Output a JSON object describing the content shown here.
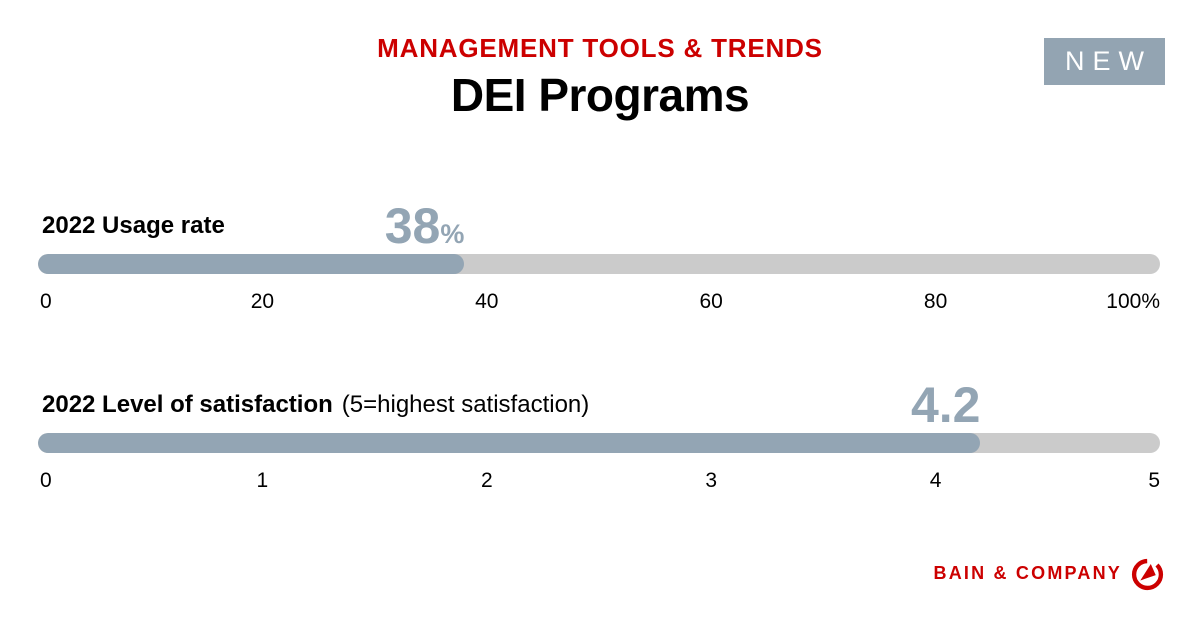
{
  "header": {
    "eyebrow": "MANAGEMENT TOOLS & TRENDS",
    "title": "DEI Programs",
    "badge_label": "NEW"
  },
  "colors": {
    "brand_red": "#cc0000",
    "bar_fill_blue": "#93a5b4",
    "bar_track_gray": "#cbcbcb",
    "badge_bg": "#93a4b2",
    "value_text_blue": "#93a5b4"
  },
  "chart_data": [
    {
      "type": "bar",
      "orientation": "horizontal",
      "title": "2022 Usage rate",
      "value": 38,
      "max": 100,
      "value_label": "38",
      "value_suffix": "%",
      "axis_ticks": [
        "0",
        "20",
        "40",
        "60",
        "80",
        "100%"
      ],
      "xlim": [
        0,
        100
      ],
      "grid": false,
      "legend": false
    },
    {
      "type": "bar",
      "orientation": "horizontal",
      "title": "2022 Level of satisfaction",
      "subtitle": "(5=highest satisfaction)",
      "value": 4.2,
      "max": 5,
      "value_label": "4.2",
      "value_suffix": "",
      "axis_ticks": [
        "0",
        "1",
        "2",
        "3",
        "4",
        "5"
      ],
      "xlim": [
        0,
        5
      ],
      "grid": false,
      "legend": false
    }
  ],
  "footer": {
    "brand": "BAIN & COMPANY",
    "logo_icon": "bain-compass-icon"
  }
}
